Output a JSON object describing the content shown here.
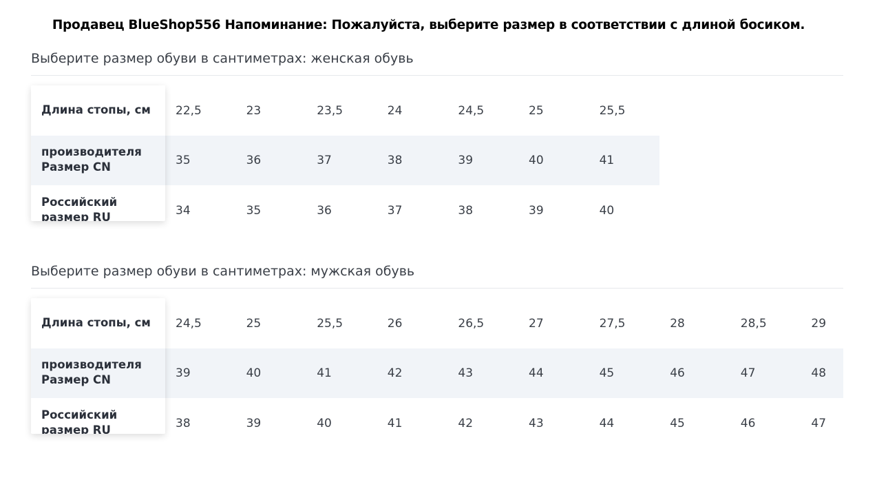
{
  "notice": "Продавец BlueShop556 Напоминание: Пожалуйста, выберите размер в соответствии с длиной босиком.",
  "tables": [
    {
      "title": "Выберите размер обуви в сантиметрах: женская обувь",
      "row_labels": [
        "Длина стопы, см",
        "производителя\nРазмер CN",
        "Российский\nразмер RU"
      ],
      "rows": [
        [
          "22,5",
          "23",
          "23,5",
          "24",
          "24,5",
          "25",
          "25,5"
        ],
        [
          "35",
          "36",
          "37",
          "38",
          "39",
          "40",
          "41"
        ],
        [
          "34",
          "35",
          "36",
          "37",
          "38",
          "39",
          "40"
        ]
      ]
    },
    {
      "title": "Выберите размер обуви в сантиметрах: мужская обувь",
      "row_labels": [
        "Длина стопы, см",
        "производителя\nРазмер CN",
        "Российский\nразмер RU"
      ],
      "rows": [
        [
          "24,5",
          "25",
          "25,5",
          "26",
          "26,5",
          "27",
          "27,5",
          "28",
          "28,5",
          "29"
        ],
        [
          "39",
          "40",
          "41",
          "42",
          "43",
          "44",
          "45",
          "46",
          "47",
          "48"
        ],
        [
          "38",
          "39",
          "40",
          "41",
          "42",
          "43",
          "44",
          "45",
          "46",
          "47"
        ]
      ]
    }
  ]
}
